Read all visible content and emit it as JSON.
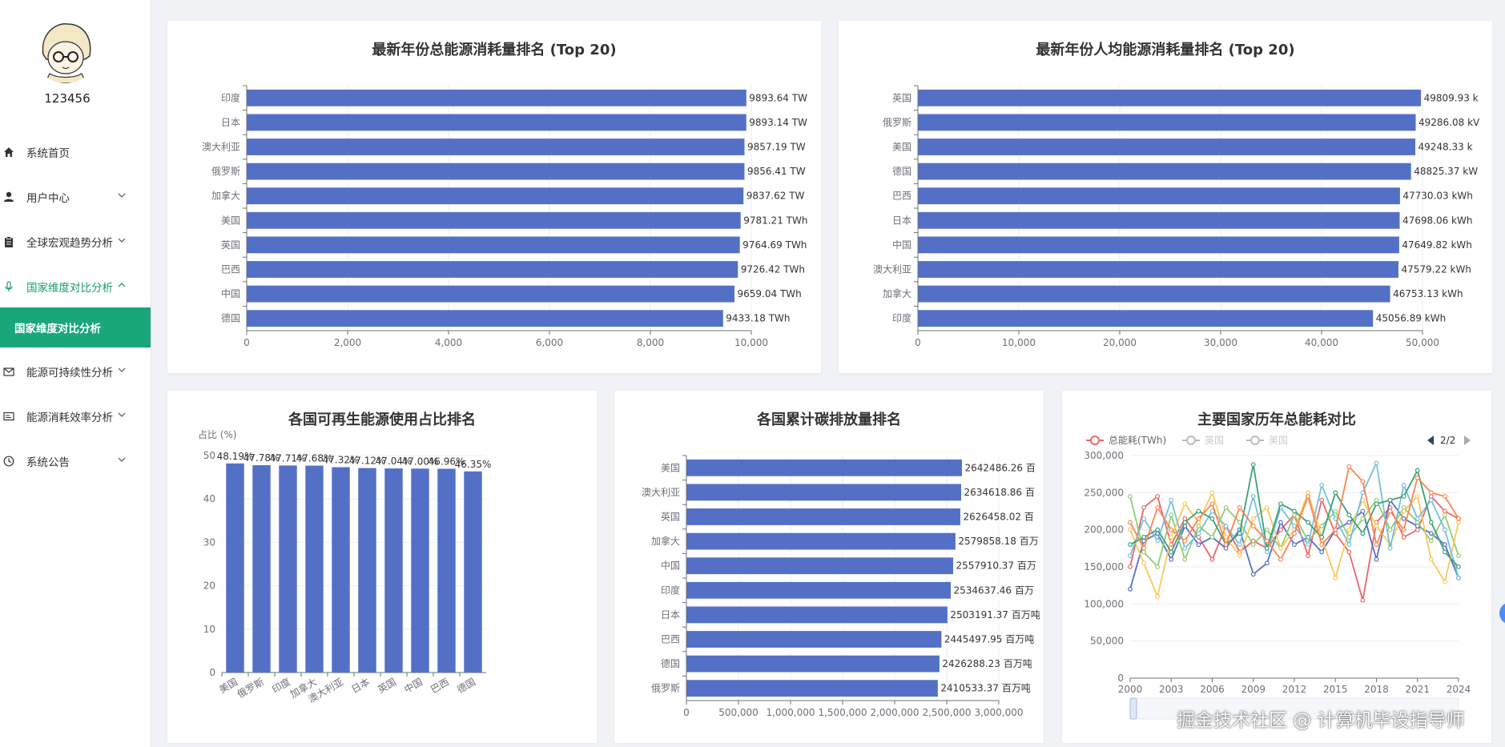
{
  "user": {
    "name": "123456"
  },
  "sidebar": {
    "items": [
      {
        "label": "系统首页",
        "icon": "home-icon"
      },
      {
        "label": "用户中心",
        "icon": "user-icon"
      },
      {
        "label": "全球宏观趋势分析",
        "icon": "clipboard-icon"
      },
      {
        "label": "国家维度对比分析",
        "icon": "microphone-icon"
      },
      {
        "label": "能源可持续性分析",
        "icon": "mail-icon"
      },
      {
        "label": "能源消耗效率分析",
        "icon": "id-card-icon"
      },
      {
        "label": "系统公告",
        "icon": "clock-icon"
      }
    ],
    "active_submenu": "国家维度对比分析"
  },
  "colors": {
    "accent": "#18a67a",
    "bar": "#5470c6"
  },
  "watermark": "掘金技术社区 @ 计算机毕设指导师",
  "chart_data": [
    {
      "type": "bar",
      "orientation": "horizontal",
      "title": "最新年份总能源消耗量排名 (Top 20)",
      "categories": [
        "印度",
        "日本",
        "澳大利亚",
        "俄罗斯",
        "加拿大",
        "美国",
        "英国",
        "巴西",
        "中国",
        "德国"
      ],
      "values": [
        9893.64,
        9893.14,
        9857.19,
        9856.41,
        9837.62,
        9781.21,
        9764.69,
        9726.42,
        9659.04,
        9433.18
      ],
      "labels": [
        "9893.64 TW",
        "9893.14 TW",
        "9857.19 TW",
        "9856.41 TW",
        "9837.62 TW",
        "9781.21 TWh",
        "9764.69 TWh",
        "9726.42 TWh",
        "9659.04 TWh",
        "9433.18 TWh"
      ],
      "xlim": [
        0,
        10000
      ],
      "xticks": [
        "0",
        "2,000",
        "4,000",
        "6,000",
        "8,000",
        "10,000"
      ]
    },
    {
      "type": "bar",
      "orientation": "horizontal",
      "title": "最新年份人均能源消耗量排名 (Top 20)",
      "categories": [
        "英国",
        "俄罗斯",
        "美国",
        "德国",
        "巴西",
        "日本",
        "中国",
        "澳大利亚",
        "加拿大",
        "印度"
      ],
      "values": [
        49809.93,
        49286.08,
        49248.33,
        48825.37,
        47730.03,
        47698.06,
        47649.82,
        47579.22,
        46753.13,
        45056.89
      ],
      "labels": [
        "49809.93 k",
        "49286.08 kV",
        "49248.33 k",
        "48825.37 kW",
        "47730.03 kWh",
        "47698.06 kWh",
        "47649.82 kWh",
        "47579.22 kWh",
        "46753.13 kWh",
        "45056.89 kWh"
      ],
      "xlim": [
        0,
        50000
      ],
      "xticks": [
        "0",
        "10,000",
        "20,000",
        "30,000",
        "40,000",
        "50,000"
      ]
    },
    {
      "type": "bar",
      "orientation": "vertical",
      "title": "各国可再生能源使用占比排名",
      "ylabel": "占比 (%)",
      "categories": [
        "美国",
        "俄罗斯",
        "印度",
        "加拿大",
        "澳大利亚",
        "日本",
        "英国",
        "中国",
        "巴西",
        "德国"
      ],
      "values": [
        48.19,
        47.78,
        47.71,
        47.68,
        47.32,
        47.12,
        47.04,
        47.0,
        46.96,
        46.35
      ],
      "labels": [
        "48.19%",
        "47.78%",
        "47.71%",
        "47.68%",
        "47.32%",
        "47.12%",
        "47.04%",
        "47.00%",
        "46.96%",
        "46.35%"
      ],
      "ylim": [
        0,
        50
      ],
      "yticks": [
        "0",
        "10",
        "20",
        "30",
        "40",
        "50"
      ]
    },
    {
      "type": "bar",
      "orientation": "horizontal",
      "title": "各国累计碳排放量排名",
      "categories": [
        "美国",
        "澳大利亚",
        "英国",
        "加拿大",
        "中国",
        "印度",
        "日本",
        "巴西",
        "德国",
        "俄罗斯"
      ],
      "values": [
        2642486.26,
        2634618.86,
        2626458.02,
        2579858.18,
        2557910.37,
        2534637.46,
        2503191.37,
        2445497.95,
        2426288.23,
        2410533.37
      ],
      "labels": [
        "2642486.26 百",
        "2634618.86 百",
        "2626458.02 百",
        "2579858.18 百万",
        "2557910.37 百万",
        "2534637.46 百万",
        "2503191.37 百万吨",
        "2445497.95 百万吨",
        "2426288.23 百万吨",
        "2410533.37 百万吨"
      ],
      "xlim": [
        0,
        3000000
      ],
      "xticks": [
        "0",
        "500,000",
        "1,000,000",
        "1,500,000",
        "2,000,000",
        "2,500,000",
        "3,000,000"
      ]
    },
    {
      "type": "line",
      "title": "主要国家历年总能耗对比",
      "legend": {
        "items": [
          "总能耗(TWh)",
          "英国",
          "美国"
        ],
        "page": "2/2"
      },
      "ylim": [
        0,
        300000
      ],
      "yticks": [
        "0",
        "50,000",
        "100,000",
        "150,000",
        "200,000",
        "250,000",
        "300,000"
      ],
      "x": [
        2000,
        2001,
        2002,
        2003,
        2004,
        2005,
        2006,
        2007,
        2008,
        2009,
        2010,
        2011,
        2012,
        2013,
        2014,
        2015,
        2016,
        2017,
        2018,
        2019,
        2020,
        2021,
        2022,
        2023,
        2024
      ],
      "xticks": [
        "2000",
        "2003",
        "2006",
        "2009",
        "2012",
        "2015",
        "2018",
        "2021",
        "2024"
      ],
      "series": [
        {
          "color": "#ee6666",
          "values": [
            150000,
            230000,
            245000,
            180000,
            215000,
            190000,
            160000,
            205000,
            170000,
            185000,
            175000,
            200000,
            220000,
            165000,
            240000,
            195000,
            170000,
            105000,
            210000,
            230000,
            190000,
            200000,
            245000,
            225000,
            215000
          ]
        },
        {
          "color": "#5470c6",
          "values": [
            120000,
            185000,
            195000,
            160000,
            205000,
            180000,
            190000,
            175000,
            200000,
            140000,
            155000,
            210000,
            180000,
            190000,
            170000,
            200000,
            210000,
            225000,
            160000,
            240000,
            215000,
            205000,
            195000,
            180000,
            135000
          ]
        },
        {
          "color": "#91cc75",
          "values": [
            245000,
            170000,
            150000,
            220000,
            160000,
            205000,
            190000,
            230000,
            210000,
            180000,
            200000,
            175000,
            220000,
            185000,
            205000,
            225000,
            190000,
            215000,
            240000,
            200000,
            230000,
            210000,
            185000,
            220000,
            165000
          ]
        },
        {
          "color": "#fac858",
          "values": [
            200000,
            155000,
            110000,
            190000,
            235000,
            210000,
            250000,
            190000,
            165000,
            215000,
            230000,
            175000,
            200000,
            250000,
            190000,
            135000,
            200000,
            240000,
            205000,
            180000,
            225000,
            245000,
            160000,
            130000,
            210000
          ]
        },
        {
          "color": "#73c0de",
          "values": [
            165000,
            215000,
            185000,
            240000,
            175000,
            195000,
            225000,
            205000,
            180000,
            245000,
            170000,
            230000,
            205000,
            180000,
            260000,
            215000,
            180000,
            250000,
            290000,
            175000,
            260000,
            215000,
            240000,
            200000,
            135000
          ]
        },
        {
          "color": "#3ba272",
          "values": [
            180000,
            190000,
            200000,
            170000,
            210000,
            225000,
            215000,
            180000,
            195000,
            288000,
            175000,
            235000,
            225000,
            210000,
            190000,
            250000,
            220000,
            195000,
            235000,
            240000,
            245000,
            280000,
            210000,
            170000,
            150000
          ]
        },
        {
          "color": "#fc8452",
          "values": [
            210000,
            175000,
            230000,
            200000,
            185000,
            215000,
            235000,
            180000,
            230000,
            205000,
            185000,
            160000,
            195000,
            245000,
            180000,
            200000,
            285000,
            265000,
            180000,
            225000,
            200000,
            270000,
            250000,
            245000,
            215000
          ]
        }
      ]
    }
  ]
}
